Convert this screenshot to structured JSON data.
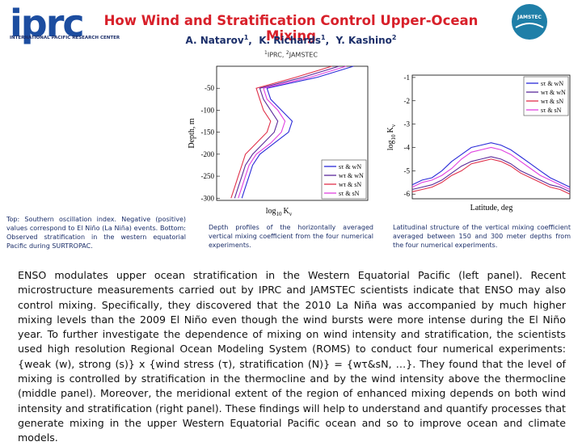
{
  "header": {
    "logo": "iprc",
    "logo_subtitle": "INTERNATIONAL PACIFIC RESEARCH CENTER",
    "title": "How Wind and Stratification Control Upper-Ocean Mixing",
    "authors": [
      {
        "name": "A. Natarov",
        "aff": "1"
      },
      {
        "name": "K. Richards",
        "aff": "1"
      },
      {
        "name": "Y. Kashino",
        "aff": "2"
      }
    ],
    "affiliations": [
      {
        "mark": "1",
        "name": "IPRC"
      },
      {
        "mark": "2",
        "name": "JAMSTEC"
      }
    ],
    "partner_logo": "JAMSTEC"
  },
  "chart_data": [
    {
      "type": "profile",
      "ylabel": "Depth, m",
      "xlabel": {
        "base": "log",
        "sub": "10",
        "var": "K",
        "varsub": "v"
      },
      "depth": [
        0,
        -25,
        -50,
        -75,
        -100,
        -125,
        -150,
        -175,
        -200,
        -225,
        -250,
        -275,
        -300
      ],
      "xlim": [
        -6,
        -1.8
      ],
      "ylim": [
        -305,
        0
      ],
      "yticks": [
        -50,
        -100,
        -150,
        -200,
        -250,
        -300
      ],
      "legend": "lower right",
      "series": [
        {
          "name": "sτ & wN",
          "color": "#2a2ad8",
          "values": [
            -2.2,
            -3.2,
            -4.6,
            -4.5,
            -4.2,
            -3.9,
            -4.0,
            -4.4,
            -4.8,
            -5.0,
            -5.1,
            -5.2,
            -5.3
          ]
        },
        {
          "name": "wτ & wN",
          "color": "#5a2a9a",
          "values": [
            -2.6,
            -3.6,
            -4.8,
            -4.7,
            -4.5,
            -4.3,
            -4.4,
            -4.7,
            -5.0,
            -5.2,
            -5.3,
            -5.4,
            -5.5
          ]
        },
        {
          "name": "wτ & sN",
          "color": "#e0304a",
          "values": [
            -2.8,
            -3.8,
            -4.9,
            -4.8,
            -4.7,
            -4.5,
            -4.6,
            -4.9,
            -5.2,
            -5.3,
            -5.4,
            -5.5,
            -5.6
          ]
        },
        {
          "name": "sτ & sN",
          "color": "#e040e0",
          "values": [
            -2.4,
            -3.4,
            -4.7,
            -4.6,
            -4.3,
            -4.1,
            -4.2,
            -4.5,
            -4.9,
            -5.1,
            -5.2,
            -5.3,
            -5.4
          ]
        }
      ]
    },
    {
      "type": "line",
      "xlabel": "Latitude, deg",
      "ylabel": {
        "base": "log",
        "sub": "10",
        "var": "K",
        "varsub": "v"
      },
      "x": [
        -8,
        -7,
        -6,
        -5,
        -4,
        -3,
        -2,
        -1,
        0,
        1,
        2,
        3,
        4,
        5,
        6,
        7,
        8
      ],
      "xlim": [
        -8,
        8
      ],
      "ylim": [
        -6.2,
        -0.9
      ],
      "yticks": [
        -1,
        -2,
        -3,
        -4,
        -5,
        -6
      ],
      "legend": "upper right",
      "series": [
        {
          "name": "sτ & wN",
          "color": "#2a2ad8",
          "values": [
            -5.6,
            -5.4,
            -5.3,
            -5.0,
            -4.6,
            -4.3,
            -4.0,
            -3.9,
            -3.8,
            -3.9,
            -4.1,
            -4.4,
            -4.7,
            -5.0,
            -5.3,
            -5.5,
            -5.7
          ]
        },
        {
          "name": "wτ & wN",
          "color": "#5a2a9a",
          "values": [
            -5.8,
            -5.7,
            -5.6,
            -5.4,
            -5.1,
            -4.8,
            -4.6,
            -4.5,
            -4.4,
            -4.5,
            -4.7,
            -5.0,
            -5.2,
            -5.4,
            -5.6,
            -5.7,
            -5.9
          ]
        },
        {
          "name": "wτ & sN",
          "color": "#e0304a",
          "values": [
            -5.9,
            -5.8,
            -5.7,
            -5.5,
            -5.2,
            -5.0,
            -4.7,
            -4.6,
            -4.5,
            -4.6,
            -4.8,
            -5.1,
            -5.3,
            -5.5,
            -5.7,
            -5.8,
            -6.0
          ]
        },
        {
          "name": "sτ & sN",
          "color": "#e040e0",
          "values": [
            -5.7,
            -5.5,
            -5.4,
            -5.2,
            -4.9,
            -4.5,
            -4.2,
            -4.1,
            -4.0,
            -4.1,
            -4.3,
            -4.6,
            -4.9,
            -5.2,
            -5.4,
            -5.6,
            -5.8
          ]
        }
      ]
    }
  ],
  "captions": [
    "Top: Southern oscillation index. Negative (positive) values correspond to El Niño (La Niña) events. Bottom: Observed stratification in the western equatorial Pacific during SURTROPAC.",
    "Depth profiles of the horizontally averaged vertical mixing coefficient from the four numerical experiments.",
    "Latitudinal structure of the vertical mixing coefficient averaged between 150 and 300 meter depths from the four numerical experiments."
  ],
  "body": "ENSO modulates upper ocean stratification in the Western Equatorial Pacific (left panel). Recent microstructure measurements carried out by IPRC and JAMSTEC scientists indicate that ENSO may also control mixing. Specifically, they discovered that the 2010 La Niña was accompanied by much higher mixing levels than the 2009 El Niño even though the wind bursts were more intense during the El Niño year. To further investigate the dependence of mixing on wind intensity and stratification, the scientists used high resolution Regional Ocean Modeling System (ROMS) to conduct four numerical experiments: {weak (w), strong (s)} x {wind stress (τ), stratification (N)} = {wτ&sN, …}. They found that the level of mixing is controlled by stratification in the thermocline and by the wind intensity above the thermocline (middle panel). Moreover, the meridional extent of the region of enhanced mixing depends on both wind intensity and stratification (right panel). These findings will help to understand and quantify processes that generate mixing in the upper Western Equatorial Pacific ocean and so to improve ocean and climate models."
}
